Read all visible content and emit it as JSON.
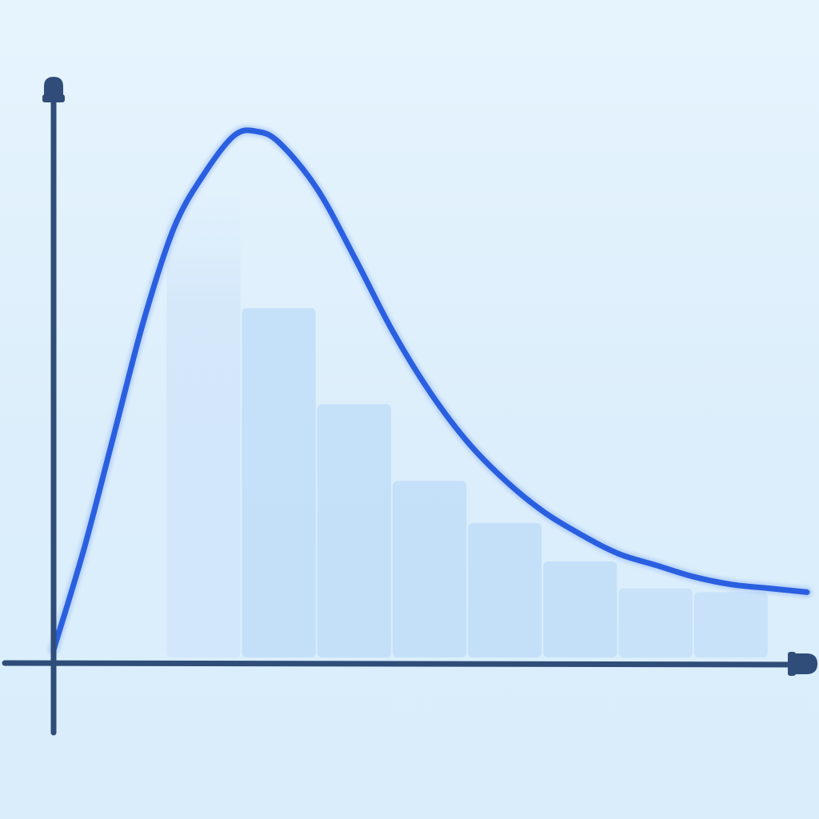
{
  "chart_data": {
    "type": "bar",
    "title": "",
    "xlabel": "",
    "ylabel": "",
    "grid": false,
    "legend": "none",
    "xlim": [
      0,
      10
    ],
    "ylim": [
      0,
      7
    ],
    "bins": [
      {
        "x0": 1.5,
        "x1": 2.5,
        "value": 6.0
      },
      {
        "x0": 2.5,
        "x1": 3.5,
        "value": 4.55
      },
      {
        "x0": 3.5,
        "x1": 4.5,
        "value": 3.3
      },
      {
        "x0": 4.5,
        "x1": 5.5,
        "value": 2.3
      },
      {
        "x0": 5.5,
        "x1": 6.5,
        "value": 1.75
      },
      {
        "x0": 6.5,
        "x1": 7.5,
        "value": 1.25
      },
      {
        "x0": 7.5,
        "x1": 8.5,
        "value": 0.9
      },
      {
        "x0": 8.5,
        "x1": 9.5,
        "value": 0.85
      }
    ],
    "series": [
      {
        "type": "line",
        "x": [
          0,
          0.4,
          0.8,
          1.2,
          1.6,
          2.0,
          2.4,
          2.7,
          3.0,
          3.5,
          4.0,
          4.5,
          5.0,
          5.5,
          6.0,
          6.5,
          7.0,
          7.5,
          8.0,
          8.5,
          9.0,
          9.5,
          10.0
        ],
        "y": [
          0.1,
          1.4,
          2.9,
          4.4,
          5.6,
          6.3,
          6.8,
          6.85,
          6.7,
          6.1,
          5.2,
          4.25,
          3.45,
          2.8,
          2.3,
          1.9,
          1.6,
          1.35,
          1.2,
          1.05,
          0.95,
          0.9,
          0.85
        ]
      }
    ]
  },
  "colors": {
    "background": "#e2f1fc",
    "bar_fill": "#c3def9",
    "bar_fill_faint": "#d3e7fa",
    "curve": "#2a5fe0",
    "axis": "#2f4d78"
  },
  "icons": {
    "y_axis_arrow": "y-axis-arrowhead-icon",
    "x_axis_arrow": "x-axis-arrowhead-icon"
  }
}
